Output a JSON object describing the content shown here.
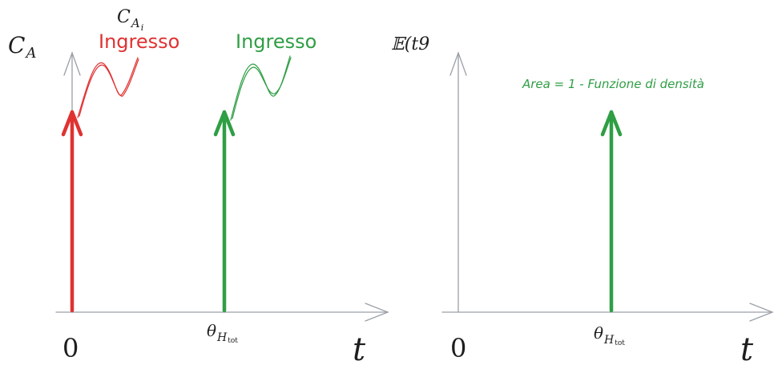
{
  "left_panel": {
    "y_axis_label": "C",
    "y_axis_label_sub": "A",
    "x_axis_label": "t",
    "origin_label": "0",
    "tick_label_main": "θ",
    "tick_label_sub": "H",
    "tick_label_subsub": "tot",
    "red_annotation_main": "C",
    "red_annotation_sub": "A",
    "red_annotation_subsub": "i",
    "red_annotation_text": "Ingresso",
    "green_annotation_text": "Ingresso"
  },
  "right_panel": {
    "y_axis_label": "𝔼(t9",
    "x_axis_label": "t",
    "origin_label": "0",
    "tick_label_main": "θ",
    "tick_label_sub": "H",
    "tick_label_subsub": "tot",
    "annotation_text": "Area = 1 - Funzione di densità"
  },
  "colors": {
    "axis": "#9aa0a6",
    "red": "#e03131",
    "green": "#2f9e44",
    "text": "#1e1e1e"
  }
}
